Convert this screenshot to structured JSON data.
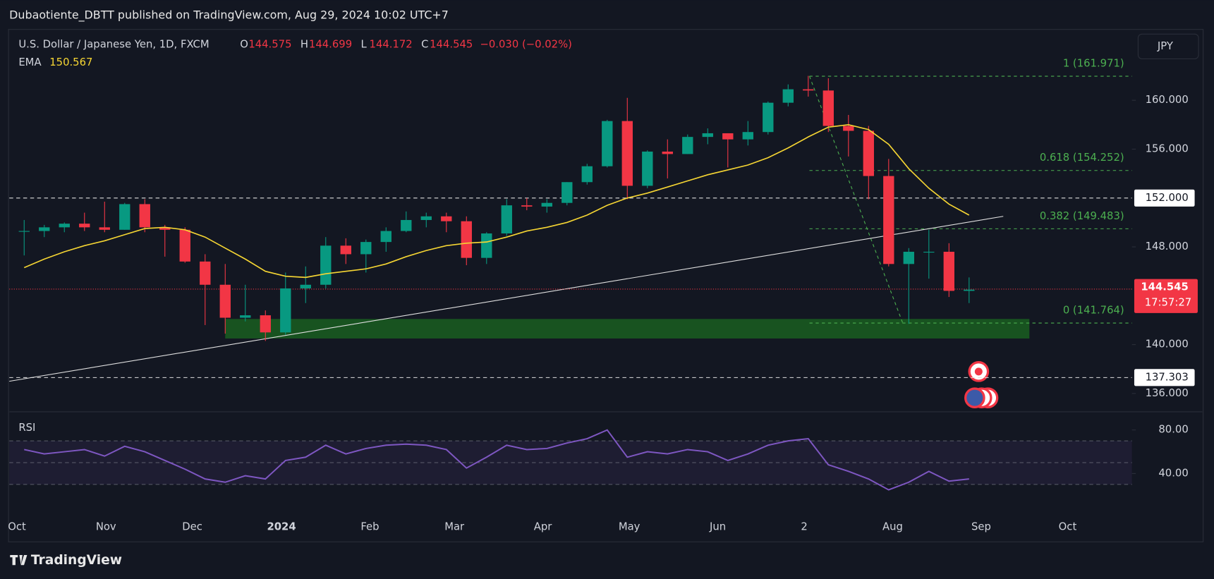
{
  "header": "Dubaotiente_DBTT published on TradingView.com, Aug 29, 2024 10:02 UTC+7",
  "footer": "TradingView",
  "chart_data": {
    "type": "candlestick",
    "title": "U.S. Dollar / Japanese Yen, 1D, FXCM",
    "ohlc_legend": [
      {
        "letter": "O",
        "value": 144.575
      },
      {
        "letter": "H",
        "value": 144.699
      },
      {
        "letter": "L",
        "value": 144.172
      },
      {
        "letter": "C",
        "value": 144.545
      }
    ],
    "change": "−0.030 (−0.02%)",
    "currency": "JPY",
    "up_color": "#089981",
    "down_color": "#f23645",
    "open": [
      149.3,
      149.3,
      149.6,
      149.9,
      149.6,
      149.4,
      151.5,
      149.6,
      149.4,
      146.8,
      144.9,
      142.2,
      142.4,
      141.0,
      144.6,
      144.9,
      148.1,
      147.4,
      148.4,
      149.3,
      150.2,
      150.5,
      150.1,
      147.1,
      149.1,
      151.4,
      151.3,
      151.6,
      153.3,
      154.6,
      158.3,
      153.0,
      155.8,
      155.6,
      157.0,
      157.3,
      156.8,
      157.4,
      159.8,
      160.9,
      160.8,
      157.9,
      157.5,
      153.8,
      146.6,
      147.6,
      147.6,
      144.4
    ],
    "high": [
      150.2,
      149.8,
      150.0,
      150.8,
      151.7,
      151.6,
      151.9,
      149.8,
      149.6,
      147.4,
      146.6,
      144.9,
      142.8,
      145.9,
      146.4,
      148.8,
      148.7,
      148.6,
      149.6,
      150.9,
      150.8,
      150.8,
      150.5,
      149.2,
      151.9,
      152.0,
      151.9,
      153.3,
      154.8,
      158.4,
      160.2,
      155.9,
      156.8,
      157.2,
      157.7,
      157.3,
      158.3,
      159.9,
      161.3,
      162.0,
      161.8,
      158.8,
      157.9,
      155.2,
      147.9,
      149.4,
      148.3,
      145.5
    ],
    "low": [
      147.3,
      148.8,
      149.2,
      149.3,
      149.2,
      149.4,
      149.2,
      147.2,
      146.7,
      141.6,
      140.9,
      141.9,
      140.3,
      140.8,
      143.4,
      144.6,
      146.6,
      145.9,
      147.6,
      149.2,
      149.6,
      149.2,
      146.5,
      146.6,
      148.9,
      151.0,
      150.8,
      151.4,
      153.1,
      154.5,
      151.9,
      152.8,
      153.6,
      155.6,
      156.4,
      154.5,
      156.3,
      157.2,
      159.5,
      160.3,
      157.4,
      155.4,
      151.9,
      146.4,
      141.7,
      145.4,
      143.9,
      143.4
    ],
    "close": [
      149.3,
      149.6,
      149.9,
      149.6,
      149.4,
      151.5,
      149.6,
      149.4,
      146.8,
      144.9,
      142.2,
      142.4,
      141.0,
      144.6,
      144.9,
      148.1,
      147.4,
      148.4,
      149.3,
      150.2,
      150.5,
      150.1,
      147.1,
      149.1,
      151.4,
      151.3,
      151.6,
      153.3,
      154.6,
      158.3,
      153.0,
      155.8,
      155.6,
      157.0,
      157.3,
      156.8,
      157.4,
      159.8,
      160.9,
      160.8,
      157.9,
      157.5,
      153.8,
      146.6,
      147.6,
      147.6,
      144.4,
      144.5
    ],
    "series": [
      {
        "name": "EMA",
        "color": "#f5d533",
        "values": [
          146.3,
          147.0,
          147.6,
          148.1,
          148.5,
          149.0,
          149.5,
          149.6,
          149.4,
          148.8,
          147.9,
          147.0,
          146.0,
          145.6,
          145.5,
          145.8,
          146.0,
          146.2,
          146.6,
          147.2,
          147.7,
          148.1,
          148.3,
          148.4,
          148.8,
          149.3,
          149.6,
          150.0,
          150.6,
          151.4,
          152.0,
          152.4,
          152.9,
          153.4,
          153.9,
          154.3,
          154.7,
          155.3,
          156.1,
          157.0,
          157.8,
          158.0,
          157.6,
          156.4,
          154.4,
          152.8,
          151.5,
          150.6
        ]
      }
    ],
    "ema_value": 150.567,
    "last_price": 144.545,
    "countdown": "17:57:27",
    "xlim": [
      -0.74,
      55.1
    ],
    "xticks": [
      {
        "value": -0.36,
        "label": "Oct"
      },
      {
        "value": 4.07,
        "label": "Nov"
      },
      {
        "value": 8.36,
        "label": "Dec"
      },
      {
        "value": 12.8,
        "label": "2024"
      },
      {
        "value": 17.2,
        "label": "Feb"
      },
      {
        "value": 21.4,
        "label": "Mar"
      },
      {
        "value": 25.8,
        "label": "Apr"
      },
      {
        "value": 30.1,
        "label": "May"
      },
      {
        "value": 34.5,
        "label": "Jun"
      },
      {
        "value": 38.8,
        "label": "2"
      },
      {
        "value": 43.2,
        "label": "Aug"
      },
      {
        "value": 47.6,
        "label": "Sep"
      },
      {
        "value": 51.9,
        "label": "Oct"
      }
    ],
    "ylim": [
      134.5,
      165.8
    ],
    "yticks": [
      {
        "value": 136,
        "label": "136.000"
      },
      {
        "value": 140,
        "label": "140.000"
      },
      {
        "value": 148,
        "label": "148.000"
      },
      {
        "value": 156,
        "label": "156.000"
      },
      {
        "value": 160,
        "label": "160.000"
      }
    ],
    "hlines": [
      {
        "value": 152,
        "label": "152.000"
      },
      {
        "value": 137.303,
        "label": "137.303"
      }
    ],
    "fib_levels": [
      {
        "value": 161.971,
        "label": "1 (161.971)"
      },
      {
        "value": 154.252,
        "label": "0.618 (154.252)"
      },
      {
        "value": 149.483,
        "label": "0.382 (149.483)"
      },
      {
        "value": 141.764,
        "label": "0 (141.764)"
      }
    ],
    "fib_color": "#4caf50",
    "fib_trend": {
      "x": [
        39.06,
        43.7
      ],
      "y": [
        161.971,
        141.764
      ]
    },
    "zone": {
      "x": [
        10.0,
        50.0
      ],
      "y": [
        140.5,
        142.1
      ],
      "color": "#1a5e20"
    },
    "trendline": {
      "x": [
        -0.74,
        48.7
      ],
      "y": [
        137.0,
        150.5
      ]
    },
    "rsi": {
      "name": "RSI",
      "color": "#7e57c2",
      "ylim": [
        0,
        91
      ],
      "yticks": [
        {
          "value": 80,
          "label": "80.00"
        },
        {
          "value": 40,
          "label": "40.00"
        }
      ],
      "bands": [
        70,
        50,
        30
      ],
      "values": [
        62,
        58,
        60,
        62,
        56,
        65,
        60,
        52,
        44,
        35,
        32,
        38,
        35,
        52,
        55,
        66,
        58,
        63,
        66,
        67,
        66,
        62,
        45,
        55,
        66,
        62,
        63,
        68,
        72,
        80,
        55,
        60,
        58,
        62,
        60,
        52,
        58,
        66,
        70,
        72,
        48,
        42,
        35,
        25,
        32,
        42,
        33,
        35
      ]
    }
  }
}
